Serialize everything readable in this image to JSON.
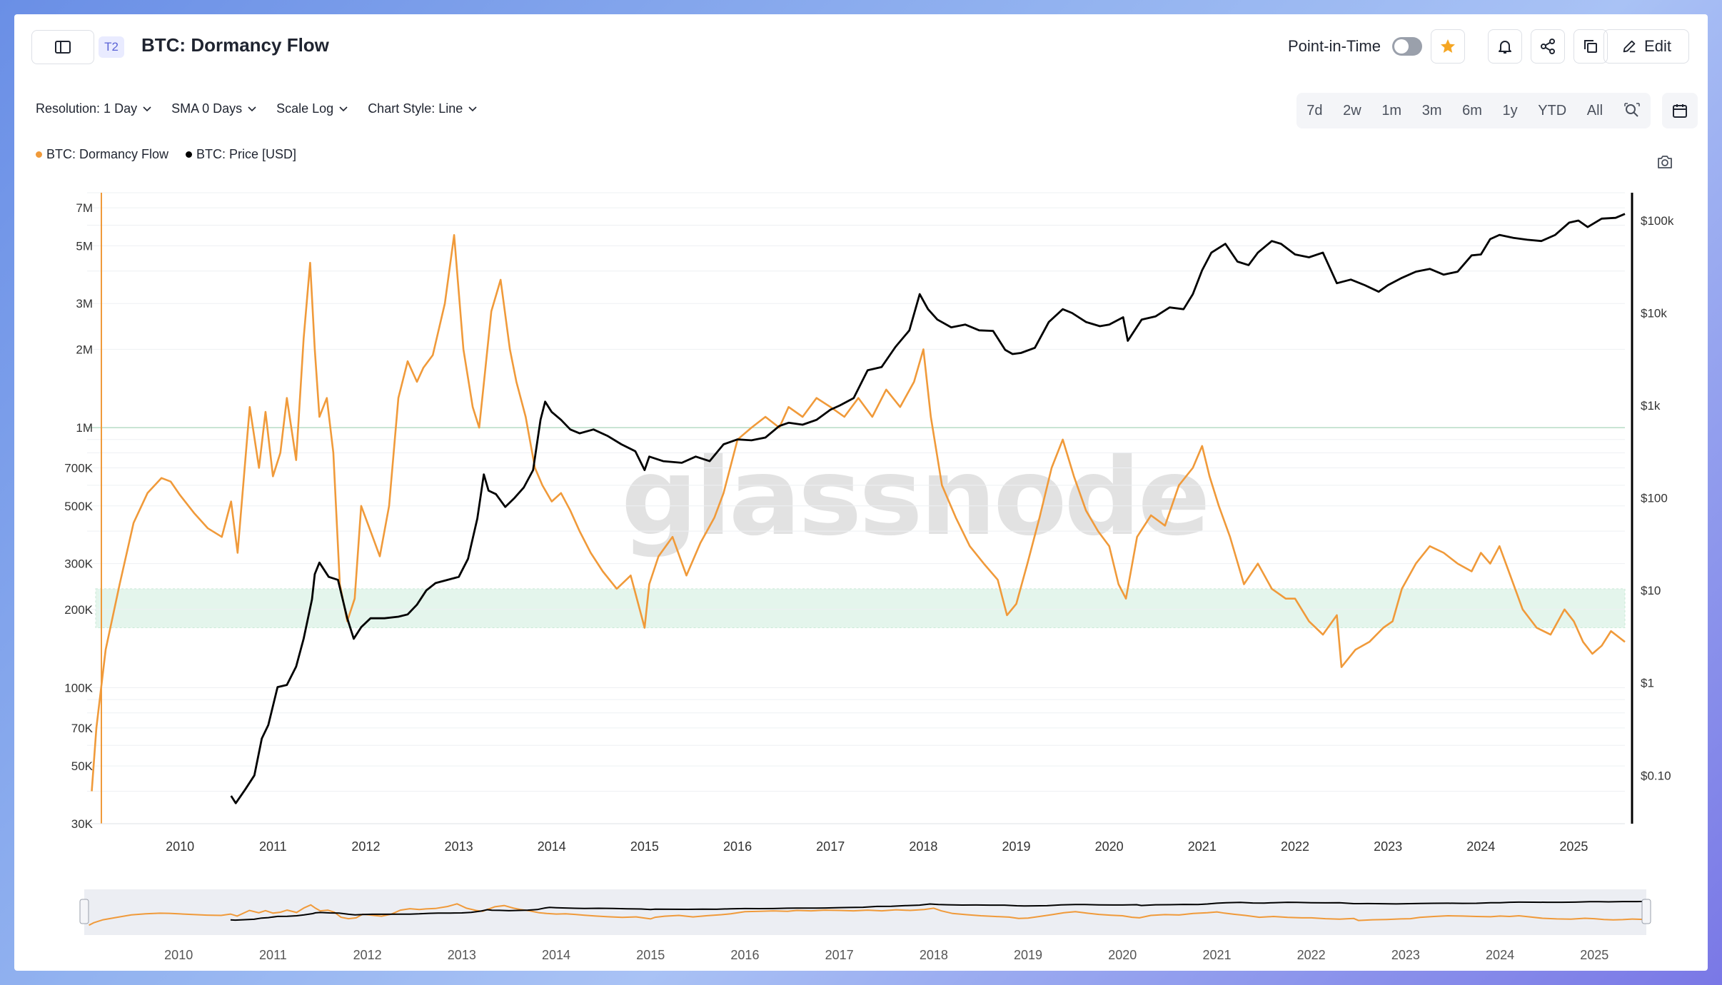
{
  "header": {
    "tier_badge": "T2",
    "title": "BTC: Dormancy Flow",
    "point_in_time_label": "Point-in-Time",
    "edit_label": "Edit"
  },
  "controls": {
    "resolution": "Resolution: 1 Day",
    "sma": "SMA 0 Days",
    "scale": "Scale Log",
    "chart_style": "Chart Style: Line"
  },
  "ranges": [
    "7d",
    "2w",
    "1m",
    "3m",
    "6m",
    "1y",
    "YTD",
    "All"
  ],
  "watermark": "glassnode",
  "colors": {
    "dormancy": "#f09a3a",
    "price": "#000000",
    "band": "#e4f5ec"
  },
  "chart_data": {
    "type": "line",
    "xlabel": "",
    "ylabel": "",
    "x_ticks": [
      "2010",
      "2011",
      "2012",
      "2013",
      "2014",
      "2015",
      "2016",
      "2017",
      "2018",
      "2019",
      "2020",
      "2021",
      "2022",
      "2023",
      "2024",
      "2025"
    ],
    "navigator_ticks": [
      "2010",
      "2011",
      "2012",
      "2013",
      "2014",
      "2015",
      "2016",
      "2017",
      "2018",
      "2019",
      "2020",
      "2021",
      "2022",
      "2023",
      "2024",
      "2025"
    ],
    "y_left": {
      "scale": "log",
      "range": [
        30000,
        8000000
      ],
      "ticks": [
        7000000,
        5000000,
        3000000,
        2000000,
        1000000,
        700000,
        500000,
        300000,
        200000,
        100000,
        70000,
        50000,
        30000
      ],
      "tick_labels": [
        "7M",
        "5M",
        "3M",
        "2M",
        "1M",
        "700K",
        "500K",
        "300K",
        "200K",
        "100K",
        "70K",
        "50K",
        "30K"
      ]
    },
    "y_right": {
      "scale": "log",
      "range": [
        0.03,
        200000
      ],
      "ticks": [
        100000,
        10000,
        1000,
        100,
        10,
        1,
        0.1
      ],
      "tick_labels": [
        "$100k",
        "$10k",
        "$1k",
        "$100",
        "$10",
        "$1",
        "$0.10"
      ]
    },
    "x_range": [
      2009.0,
      2025.55
    ],
    "legend": "top-left",
    "band": {
      "from": 170000,
      "to": 240000
    },
    "reference_line": 1000000,
    "series": [
      {
        "name": "BTC: Dormancy Flow",
        "axis": "left",
        "x": [
          2009.05,
          2009.1,
          2009.2,
          2009.35,
          2009.5,
          2009.65,
          2009.8,
          2009.9,
          2010.0,
          2010.15,
          2010.3,
          2010.45,
          2010.55,
          2010.62,
          2010.75,
          2010.85,
          2010.92,
          2011.0,
          2011.08,
          2011.15,
          2011.25,
          2011.33,
          2011.4,
          2011.45,
          2011.5,
          2011.58,
          2011.65,
          2011.72,
          2011.8,
          2011.88,
          2011.95,
          2012.05,
          2012.15,
          2012.25,
          2012.35,
          2012.45,
          2012.55,
          2012.62,
          2012.72,
          2012.85,
          2012.95,
          2013.05,
          2013.15,
          2013.22,
          2013.28,
          2013.35,
          2013.45,
          2013.55,
          2013.62,
          2013.72,
          2013.82,
          2013.9,
          2014.0,
          2014.1,
          2014.2,
          2014.3,
          2014.42,
          2014.55,
          2014.7,
          2014.85,
          2015.0,
          2015.05,
          2015.15,
          2015.3,
          2015.45,
          2015.6,
          2015.75,
          2015.85,
          2016.0,
          2016.15,
          2016.3,
          2016.45,
          2016.55,
          2016.7,
          2016.85,
          2017.0,
          2017.15,
          2017.3,
          2017.45,
          2017.6,
          2017.75,
          2017.9,
          2018.0,
          2018.08,
          2018.2,
          2018.35,
          2018.5,
          2018.65,
          2018.8,
          2018.9,
          2019.0,
          2019.12,
          2019.25,
          2019.38,
          2019.5,
          2019.62,
          2019.75,
          2019.88,
          2020.0,
          2020.1,
          2020.18,
          2020.3,
          2020.45,
          2020.6,
          2020.75,
          2020.9,
          2021.0,
          2021.08,
          2021.18,
          2021.3,
          2021.45,
          2021.6,
          2021.75,
          2021.9,
          2022.0,
          2022.15,
          2022.3,
          2022.45,
          2022.5,
          2022.65,
          2022.8,
          2022.95,
          2023.05,
          2023.15,
          2023.3,
          2023.45,
          2023.6,
          2023.75,
          2023.9,
          2024.0,
          2024.1,
          2024.2,
          2024.3,
          2024.45,
          2024.6,
          2024.75,
          2024.9,
          2025.0,
          2025.1,
          2025.2,
          2025.3,
          2025.4,
          2025.55
        ],
        "values": [
          40000,
          70000,
          140000,
          250000,
          430000,
          560000,
          640000,
          620000,
          550000,
          470000,
          410000,
          380000,
          520000,
          330000,
          1200000,
          700000,
          1150000,
          650000,
          800000,
          1300000,
          750000,
          2200000,
          4300000,
          2000000,
          1100000,
          1300000,
          800000,
          250000,
          180000,
          220000,
          500000,
          400000,
          320000,
          500000,
          1300000,
          1800000,
          1500000,
          1700000,
          1900000,
          3000000,
          5500000,
          2000000,
          1200000,
          1000000,
          1600000,
          2800000,
          3700000,
          2000000,
          1500000,
          1100000,
          700000,
          600000,
          520000,
          560000,
          480000,
          400000,
          330000,
          280000,
          240000,
          270000,
          170000,
          250000,
          320000,
          380000,
          270000,
          360000,
          450000,
          560000,
          900000,
          1000000,
          1100000,
          1000000,
          1200000,
          1100000,
          1300000,
          1200000,
          1100000,
          1300000,
          1100000,
          1400000,
          1200000,
          1500000,
          2000000,
          1100000,
          600000,
          450000,
          350000,
          300000,
          260000,
          190000,
          210000,
          300000,
          450000,
          700000,
          900000,
          650000,
          480000,
          400000,
          350000,
          250000,
          220000,
          380000,
          460000,
          420000,
          600000,
          700000,
          850000,
          650000,
          500000,
          380000,
          250000,
          300000,
          240000,
          220000,
          220000,
          180000,
          160000,
          190000,
          120000,
          140000,
          150000,
          170000,
          180000,
          240000,
          300000,
          350000,
          330000,
          300000,
          280000,
          330000,
          300000,
          350000,
          280000,
          200000,
          170000,
          160000,
          200000,
          180000,
          150000,
          135000,
          145000,
          165000,
          150000
        ]
      },
      {
        "name": "BTC: Price [USD]",
        "axis": "right",
        "x": [
          2010.55,
          2010.6,
          2010.7,
          2010.8,
          2010.88,
          2010.95,
          2011.05,
          2011.15,
          2011.25,
          2011.33,
          2011.42,
          2011.45,
          2011.5,
          2011.6,
          2011.7,
          2011.8,
          2011.87,
          2011.95,
          2012.05,
          2012.2,
          2012.35,
          2012.45,
          2012.55,
          2012.65,
          2012.75,
          2012.88,
          2013.0,
          2013.1,
          2013.2,
          2013.27,
          2013.32,
          2013.4,
          2013.5,
          2013.6,
          2013.7,
          2013.8,
          2013.88,
          2013.93,
          2014.0,
          2014.1,
          2014.2,
          2014.3,
          2014.45,
          2014.6,
          2014.75,
          2014.9,
          2015.0,
          2015.05,
          2015.2,
          2015.4,
          2015.55,
          2015.7,
          2015.85,
          2016.0,
          2016.15,
          2016.3,
          2016.45,
          2016.55,
          2016.7,
          2016.85,
          2017.0,
          2017.1,
          2017.25,
          2017.4,
          2017.55,
          2017.7,
          2017.85,
          2017.96,
          2018.05,
          2018.15,
          2018.3,
          2018.45,
          2018.6,
          2018.75,
          2018.88,
          2018.96,
          2019.05,
          2019.2,
          2019.35,
          2019.5,
          2019.6,
          2019.75,
          2019.9,
          2020.0,
          2020.15,
          2020.2,
          2020.35,
          2020.5,
          2020.65,
          2020.8,
          2020.9,
          2021.0,
          2021.1,
          2021.25,
          2021.38,
          2021.5,
          2021.6,
          2021.75,
          2021.85,
          2022.0,
          2022.15,
          2022.3,
          2022.45,
          2022.6,
          2022.75,
          2022.9,
          2023.0,
          2023.15,
          2023.3,
          2023.45,
          2023.6,
          2023.75,
          2023.9,
          2024.0,
          2024.1,
          2024.2,
          2024.35,
          2024.5,
          2024.65,
          2024.8,
          2024.95,
          2025.05,
          2025.15,
          2025.3,
          2025.45,
          2025.55
        ],
        "values": [
          0.06,
          0.05,
          0.07,
          0.1,
          0.25,
          0.35,
          0.9,
          0.95,
          1.5,
          3,
          8,
          15,
          20,
          14,
          13,
          5,
          3,
          4,
          5,
          5,
          5.2,
          5.5,
          7,
          10,
          12,
          13,
          14,
          22,
          60,
          180,
          120,
          110,
          80,
          100,
          130,
          200,
          700,
          1100,
          850,
          700,
          550,
          500,
          550,
          470,
          380,
          320,
          200,
          280,
          250,
          240,
          280,
          250,
          380,
          430,
          420,
          450,
          600,
          650,
          620,
          700,
          900,
          1000,
          1200,
          2400,
          2600,
          4300,
          6500,
          16000,
          11000,
          8500,
          7000,
          7500,
          6500,
          6400,
          4000,
          3600,
          3700,
          4200,
          8000,
          11000,
          10000,
          8000,
          7200,
          7500,
          9000,
          5000,
          8500,
          9200,
          11500,
          11000,
          16000,
          29000,
          45000,
          56000,
          36000,
          33000,
          45000,
          60000,
          56000,
          43000,
          40000,
          45000,
          21000,
          23000,
          20000,
          17000,
          20000,
          24000,
          28000,
          30000,
          26000,
          28000,
          42000,
          43000,
          63000,
          70000,
          65000,
          62000,
          60000,
          70000,
          95000,
          100000,
          85000,
          105000,
          107000,
          118000
        ]
      }
    ]
  }
}
